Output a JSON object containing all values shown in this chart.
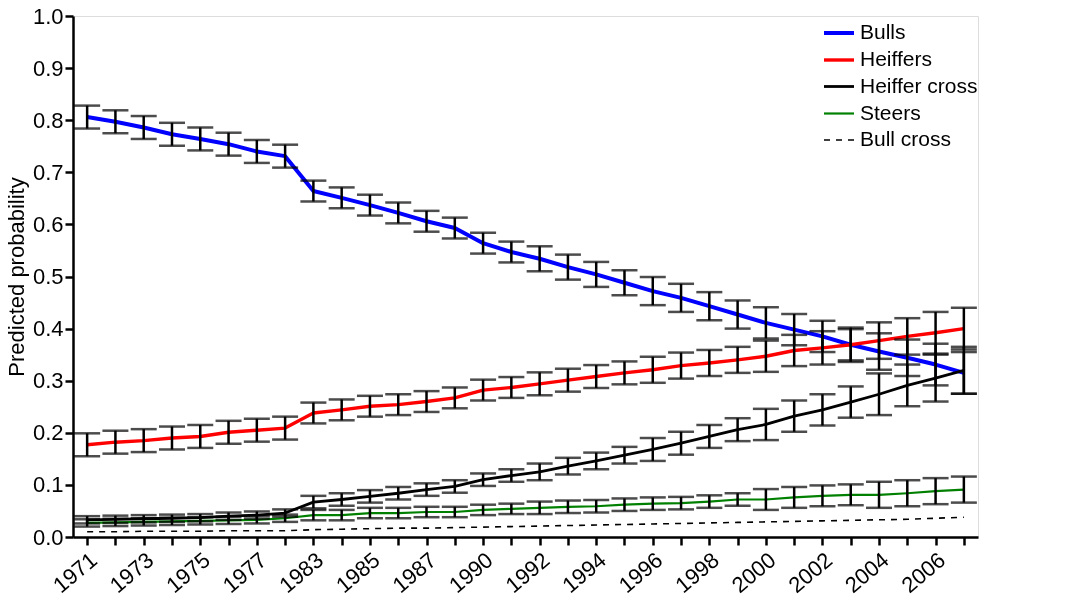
{
  "chart_data": {
    "type": "line",
    "ylabel": "Predicted probability",
    "categories": [
      "1971",
      null,
      "1973",
      null,
      "1975",
      null,
      "1977",
      null,
      "1983",
      null,
      "1985",
      null,
      "1987",
      null,
      "1990",
      null,
      "1992",
      null,
      "1994",
      null,
      "1996",
      null,
      "1998",
      null,
      "2000",
      null,
      "2002",
      null,
      "2004",
      null,
      "2006",
      null
    ],
    "ylim": [
      0,
      1
    ],
    "yticks": [
      {
        "value": 0,
        "label": "0.0"
      },
      0.1,
      0.2,
      0.3,
      0.4,
      0.5,
      0.6,
      0.7,
      0.8,
      0.9,
      {
        "value": 1,
        "label": "1.0"
      }
    ],
    "grid": false,
    "legend": "top right",
    "line_style": "solid",
    "marker": "none",
    "series": [
      {
        "name": "Bulls",
        "color": "#0000ff",
        "values": [
          0.806,
          0.797,
          0.786,
          0.773,
          0.764,
          0.754,
          0.74,
          0.731,
          0.664,
          0.651,
          0.637,
          0.622,
          0.606,
          0.593,
          0.564,
          0.547,
          0.534,
          0.518,
          0.504,
          0.488,
          0.472,
          0.459,
          0.443,
          0.427,
          0.411,
          0.398,
          0.385,
          0.369,
          0.356,
          0.344,
          0.331,
          0.315
        ],
        "errors": [
          0.022,
          0.022,
          0.022,
          0.022,
          0.022,
          0.022,
          0.022,
          0.022,
          0.02,
          0.02,
          0.02,
          0.02,
          0.02,
          0.02,
          0.02,
          0.02,
          0.024,
          0.024,
          0.024,
          0.024,
          0.027,
          0.027,
          0.027,
          0.027,
          0.03,
          0.03,
          0.03,
          0.03,
          0.035,
          0.035,
          0.04,
          0.04
        ]
      },
      {
        "name": "Heiffers",
        "color": "#ff0000",
        "values": [
          0.177,
          0.182,
          0.185,
          0.19,
          0.193,
          0.201,
          0.205,
          0.209,
          0.238,
          0.244,
          0.251,
          0.254,
          0.26,
          0.267,
          0.282,
          0.287,
          0.294,
          0.301,
          0.308,
          0.315,
          0.321,
          0.329,
          0.334,
          0.34,
          0.347,
          0.358,
          0.363,
          0.369,
          0.377,
          0.385,
          0.392,
          0.4
        ],
        "errors": [
          0.022,
          0.022,
          0.022,
          0.022,
          0.022,
          0.022,
          0.022,
          0.022,
          0.02,
          0.02,
          0.02,
          0.02,
          0.02,
          0.02,
          0.02,
          0.02,
          0.022,
          0.022,
          0.022,
          0.022,
          0.025,
          0.025,
          0.025,
          0.025,
          0.03,
          0.03,
          0.032,
          0.033,
          0.035,
          0.035,
          0.04,
          0.04
        ]
      },
      {
        "name": "Heiffer cross",
        "color": "#000000",
        "values": [
          0.033,
          0.034,
          0.035,
          0.036,
          0.037,
          0.04,
          0.042,
          0.046,
          0.067,
          0.072,
          0.078,
          0.084,
          0.091,
          0.097,
          0.11,
          0.118,
          0.125,
          0.136,
          0.146,
          0.157,
          0.168,
          0.18,
          0.193,
          0.206,
          0.216,
          0.232,
          0.244,
          0.259,
          0.274,
          0.291,
          0.305,
          0.32
        ],
        "errors": [
          0.007,
          0.007,
          0.007,
          0.007,
          0.007,
          0.007,
          0.007,
          0.007,
          0.012,
          0.012,
          0.012,
          0.012,
          0.012,
          0.012,
          0.012,
          0.012,
          0.016,
          0.016,
          0.016,
          0.016,
          0.022,
          0.022,
          0.022,
          0.022,
          0.03,
          0.03,
          0.03,
          0.03,
          0.04,
          0.04,
          0.045,
          0.045
        ]
      },
      {
        "name": "Steers",
        "color": "#008000",
        "values": [
          0.027,
          0.028,
          0.029,
          0.03,
          0.031,
          0.032,
          0.033,
          0.036,
          0.042,
          0.042,
          0.046,
          0.046,
          0.048,
          0.048,
          0.052,
          0.054,
          0.056,
          0.058,
          0.059,
          0.062,
          0.064,
          0.065,
          0.068,
          0.072,
          0.072,
          0.076,
          0.079,
          0.081,
          0.081,
          0.084,
          0.088,
          0.091
        ],
        "errors": [
          0.007,
          0.007,
          0.007,
          0.007,
          0.007,
          0.007,
          0.007,
          0.007,
          0.01,
          0.01,
          0.01,
          0.01,
          0.01,
          0.01,
          0.01,
          0.01,
          0.012,
          0.012,
          0.012,
          0.012,
          0.012,
          0.012,
          0.012,
          0.012,
          0.02,
          0.02,
          0.02,
          0.02,
          0.025,
          0.025,
          0.025,
          0.025
        ]
      },
      {
        "name": "Bull cross",
        "color": "#000000",
        "line_style": "dashed",
        "values": [
          0.01,
          0.01,
          0.011,
          0.011,
          0.011,
          0.012,
          0.012,
          0.012,
          0.014,
          0.015,
          0.016,
          0.017,
          0.017,
          0.018,
          0.019,
          0.02,
          0.021,
          0.022,
          0.023,
          0.024,
          0.025,
          0.026,
          0.027,
          0.028,
          0.029,
          0.03,
          0.031,
          0.032,
          0.033,
          0.034,
          0.036,
          0.038
        ]
      }
    ]
  }
}
